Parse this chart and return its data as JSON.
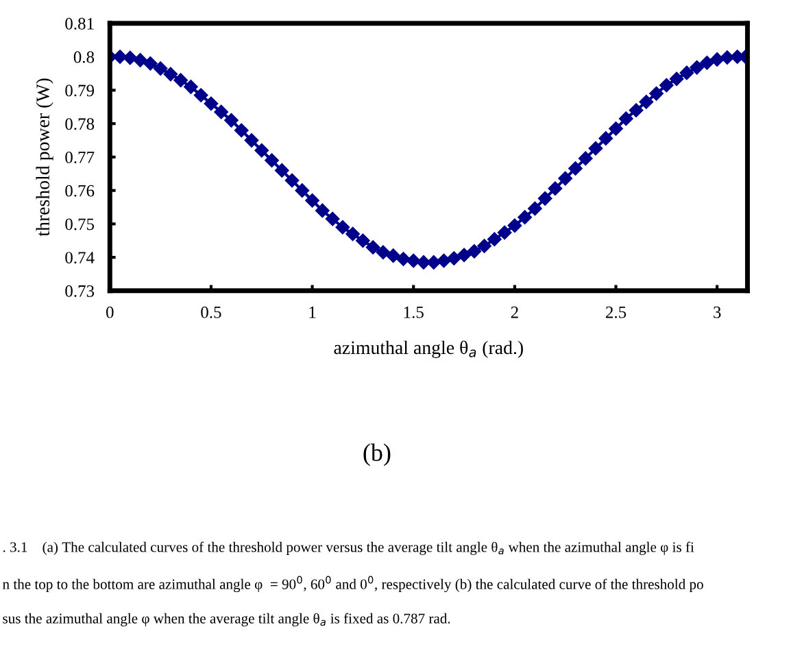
{
  "chart_data": {
    "type": "line",
    "xlabel": "azimuthal angle θ$_{a}$ (rad.)",
    "ylabel": "threshold power (W)",
    "series": [
      {
        "color": "#00008b",
        "marker": "diamond",
        "line_style": "solid",
        "x": [
          0,
          0.05,
          0.1,
          0.15,
          0.2,
          0.25,
          0.3,
          0.35,
          0.4,
          0.45,
          0.5,
          0.55,
          0.6,
          0.65,
          0.7,
          0.75,
          0.8,
          0.85,
          0.9,
          0.95,
          1.0,
          1.05,
          1.1,
          1.15,
          1.2,
          1.25,
          1.3,
          1.35,
          1.4,
          1.45,
          1.5,
          1.55,
          1.6,
          1.65,
          1.7,
          1.75,
          1.8,
          1.85,
          1.9,
          1.95,
          2.0,
          2.05,
          2.1,
          2.15,
          2.2,
          2.25,
          2.3,
          2.35,
          2.4,
          2.45,
          2.5,
          2.55,
          2.6,
          2.65,
          2.7,
          2.75,
          2.8,
          2.85,
          2.9,
          2.95,
          3.0,
          3.05,
          3.1,
          3.14
        ],
        "values": [
          0.8,
          0.8,
          0.7997,
          0.799,
          0.798,
          0.7965,
          0.7948,
          0.793,
          0.791,
          0.7885,
          0.786,
          0.7835,
          0.781,
          0.778,
          0.775,
          0.772,
          0.769,
          0.766,
          0.763,
          0.76,
          0.757,
          0.754,
          0.7515,
          0.749,
          0.747,
          0.745,
          0.743,
          0.7415,
          0.7405,
          0.7395,
          0.739,
          0.7385,
          0.7385,
          0.739,
          0.7397,
          0.7407,
          0.7418,
          0.7434,
          0.7454,
          0.7474,
          0.7495,
          0.752,
          0.7546,
          0.7576,
          0.7606,
          0.7636,
          0.7666,
          0.7696,
          0.7726,
          0.7756,
          0.7785,
          0.7815,
          0.784,
          0.7865,
          0.789,
          0.7915,
          0.7934,
          0.7952,
          0.7968,
          0.7982,
          0.7992,
          0.7998,
          0.8,
          0.8
        ]
      }
    ],
    "xlim": [
      0,
      3.15
    ],
    "xticks": [
      0,
      0.5,
      1,
      1.5,
      2,
      2.5,
      3
    ],
    "ylim": [
      0.73,
      0.81
    ],
    "yticks": [
      0.73,
      0.74,
      0.75,
      0.76,
      0.77,
      0.78,
      0.79,
      0.8,
      0.81
    ],
    "grid": false,
    "legend": false,
    "annotations": [
      "(b)",
      ". 3.1    (a) The calculated curves of the threshold power versus the average tilt angle θ$_{a}$ when the azimuthal angle φ is fi",
      "n the top to the bottom are azimuthal angle φ  = 90$^{0}$, 60$^{0}$ and 0$^{0}$, respectively (b) the calculated curve of the threshold po",
      "sus the azimuthal angle φ when the average tilt angle θ$_{a}$ is fixed as 0.787 rad."
    ]
  }
}
